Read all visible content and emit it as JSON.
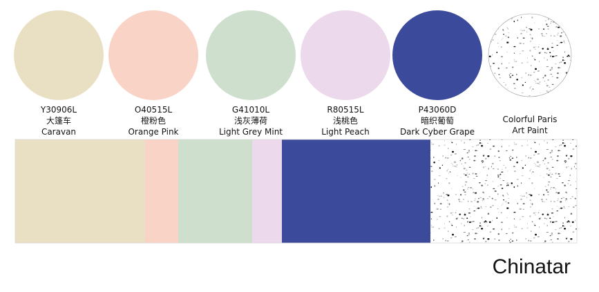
{
  "swatches": [
    {
      "code": "Y30906L",
      "name_cn": "大篷车",
      "name_en": "Caravan",
      "color": "#e9e0c4"
    },
    {
      "code": "O40515L",
      "name_cn": "橙粉色",
      "name_en": "Orange Pink",
      "color": "#f9d4c6"
    },
    {
      "code": "G41010L",
      "name_cn": "浅灰薄荷",
      "name_en": "Light Grey Mint",
      "color": "#cfdfcd"
    },
    {
      "code": "R80515L",
      "name_cn": "浅桃色",
      "name_en": "Light Peach",
      "color": "#ecdaec"
    },
    {
      "code": "P43060D",
      "name_cn": "暗织葡萄",
      "name_en": "Dark Cyber Grape",
      "color": "#3c4a9c"
    }
  ],
  "texture": {
    "name_lines": [
      "Colorful Paris",
      "Art Paint"
    ],
    "color": "#ffffff"
  },
  "brand": "Chinatar"
}
